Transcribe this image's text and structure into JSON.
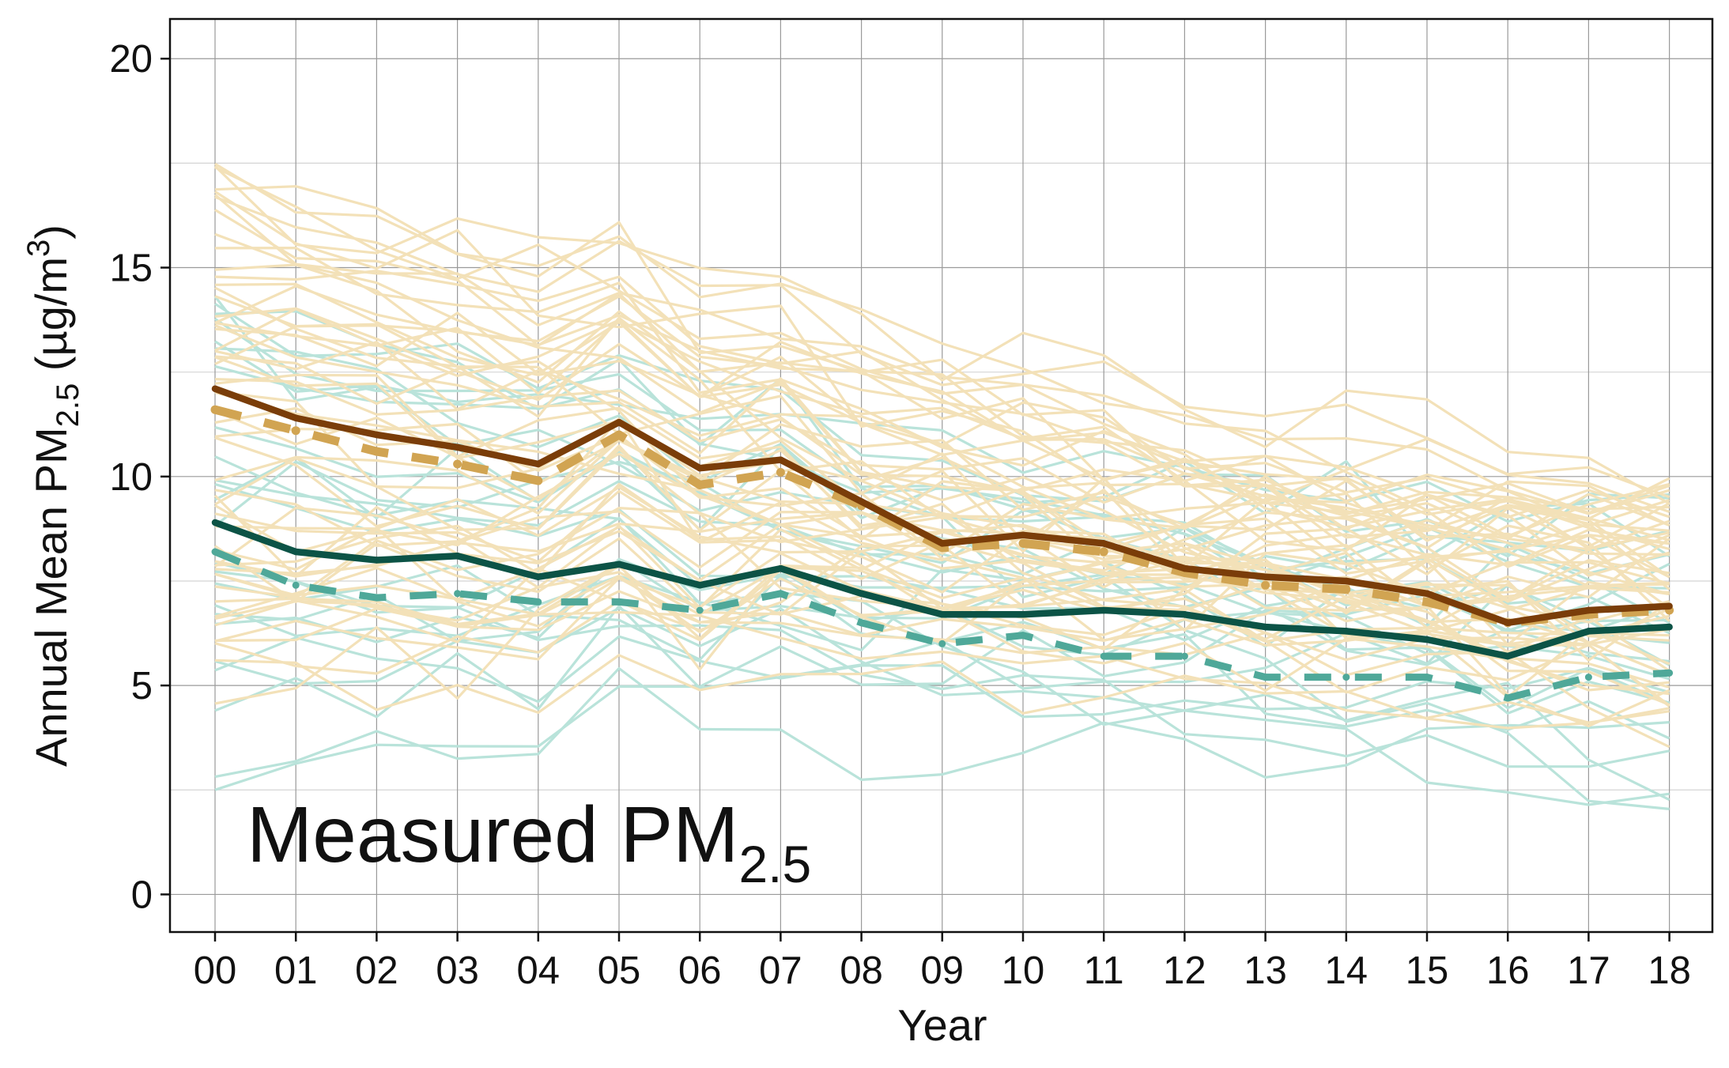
{
  "chart_data": {
    "type": "line",
    "xlabel": "Year",
    "ylabel": "Annual Mean PM",
    "ylabel_sub": "2.5",
    "ylabel_unit": " (µg/m",
    "ylabel_sup": "3",
    "ylabel_close": ")",
    "annotation": "Measured PM",
    "annotation_sub": "2.5",
    "categories": [
      "00",
      "01",
      "02",
      "03",
      "04",
      "05",
      "06",
      "07",
      "08",
      "09",
      "10",
      "11",
      "12",
      "13",
      "14",
      "15",
      "16",
      "17",
      "18"
    ],
    "ylim": [
      -0.9,
      20.95
    ],
    "yticks": [
      0,
      5,
      10,
      15,
      20
    ],
    "grid": true,
    "legend": "none",
    "colors": {
      "tan_site": "#f3e1b8",
      "teal_site": "#b9e3da",
      "brown_mean": "#7a3d09",
      "brown_dashed": "#d1a452",
      "teal_mean": "#0c5346",
      "teal_dashed": "#4fa899",
      "grid_major": "#9a9a9a",
      "grid_minor": "#d4d4d4",
      "axis": "#111111"
    },
    "series": [
      {
        "style": "teal-mean",
        "values": [
          8.9,
          8.2,
          8.0,
          8.1,
          7.6,
          7.9,
          7.4,
          7.8,
          7.2,
          6.7,
          6.7,
          6.8,
          6.7,
          6.4,
          6.3,
          6.1,
          5.7,
          6.3,
          6.4
        ]
      },
      {
        "style": "teal-dashed",
        "values": [
          8.2,
          7.4,
          7.1,
          7.2,
          7.0,
          7.0,
          6.8,
          7.2,
          6.5,
          6.0,
          6.2,
          5.7,
          5.7,
          5.2,
          5.2,
          5.2,
          4.7,
          5.2,
          5.3
        ]
      },
      {
        "style": "brown-dashed",
        "values": [
          11.6,
          11.1,
          10.6,
          10.3,
          9.9,
          11.0,
          9.8,
          10.1,
          9.3,
          8.3,
          8.4,
          8.2,
          7.7,
          7.4,
          7.3,
          7.0,
          6.5,
          6.7,
          6.8
        ]
      },
      {
        "style": "brown-mean",
        "values": [
          12.1,
          11.4,
          11.0,
          10.7,
          10.3,
          11.3,
          10.2,
          10.4,
          9.4,
          8.4,
          8.6,
          8.4,
          7.8,
          7.6,
          7.5,
          7.2,
          6.5,
          6.8,
          6.9
        ]
      }
    ]
  }
}
